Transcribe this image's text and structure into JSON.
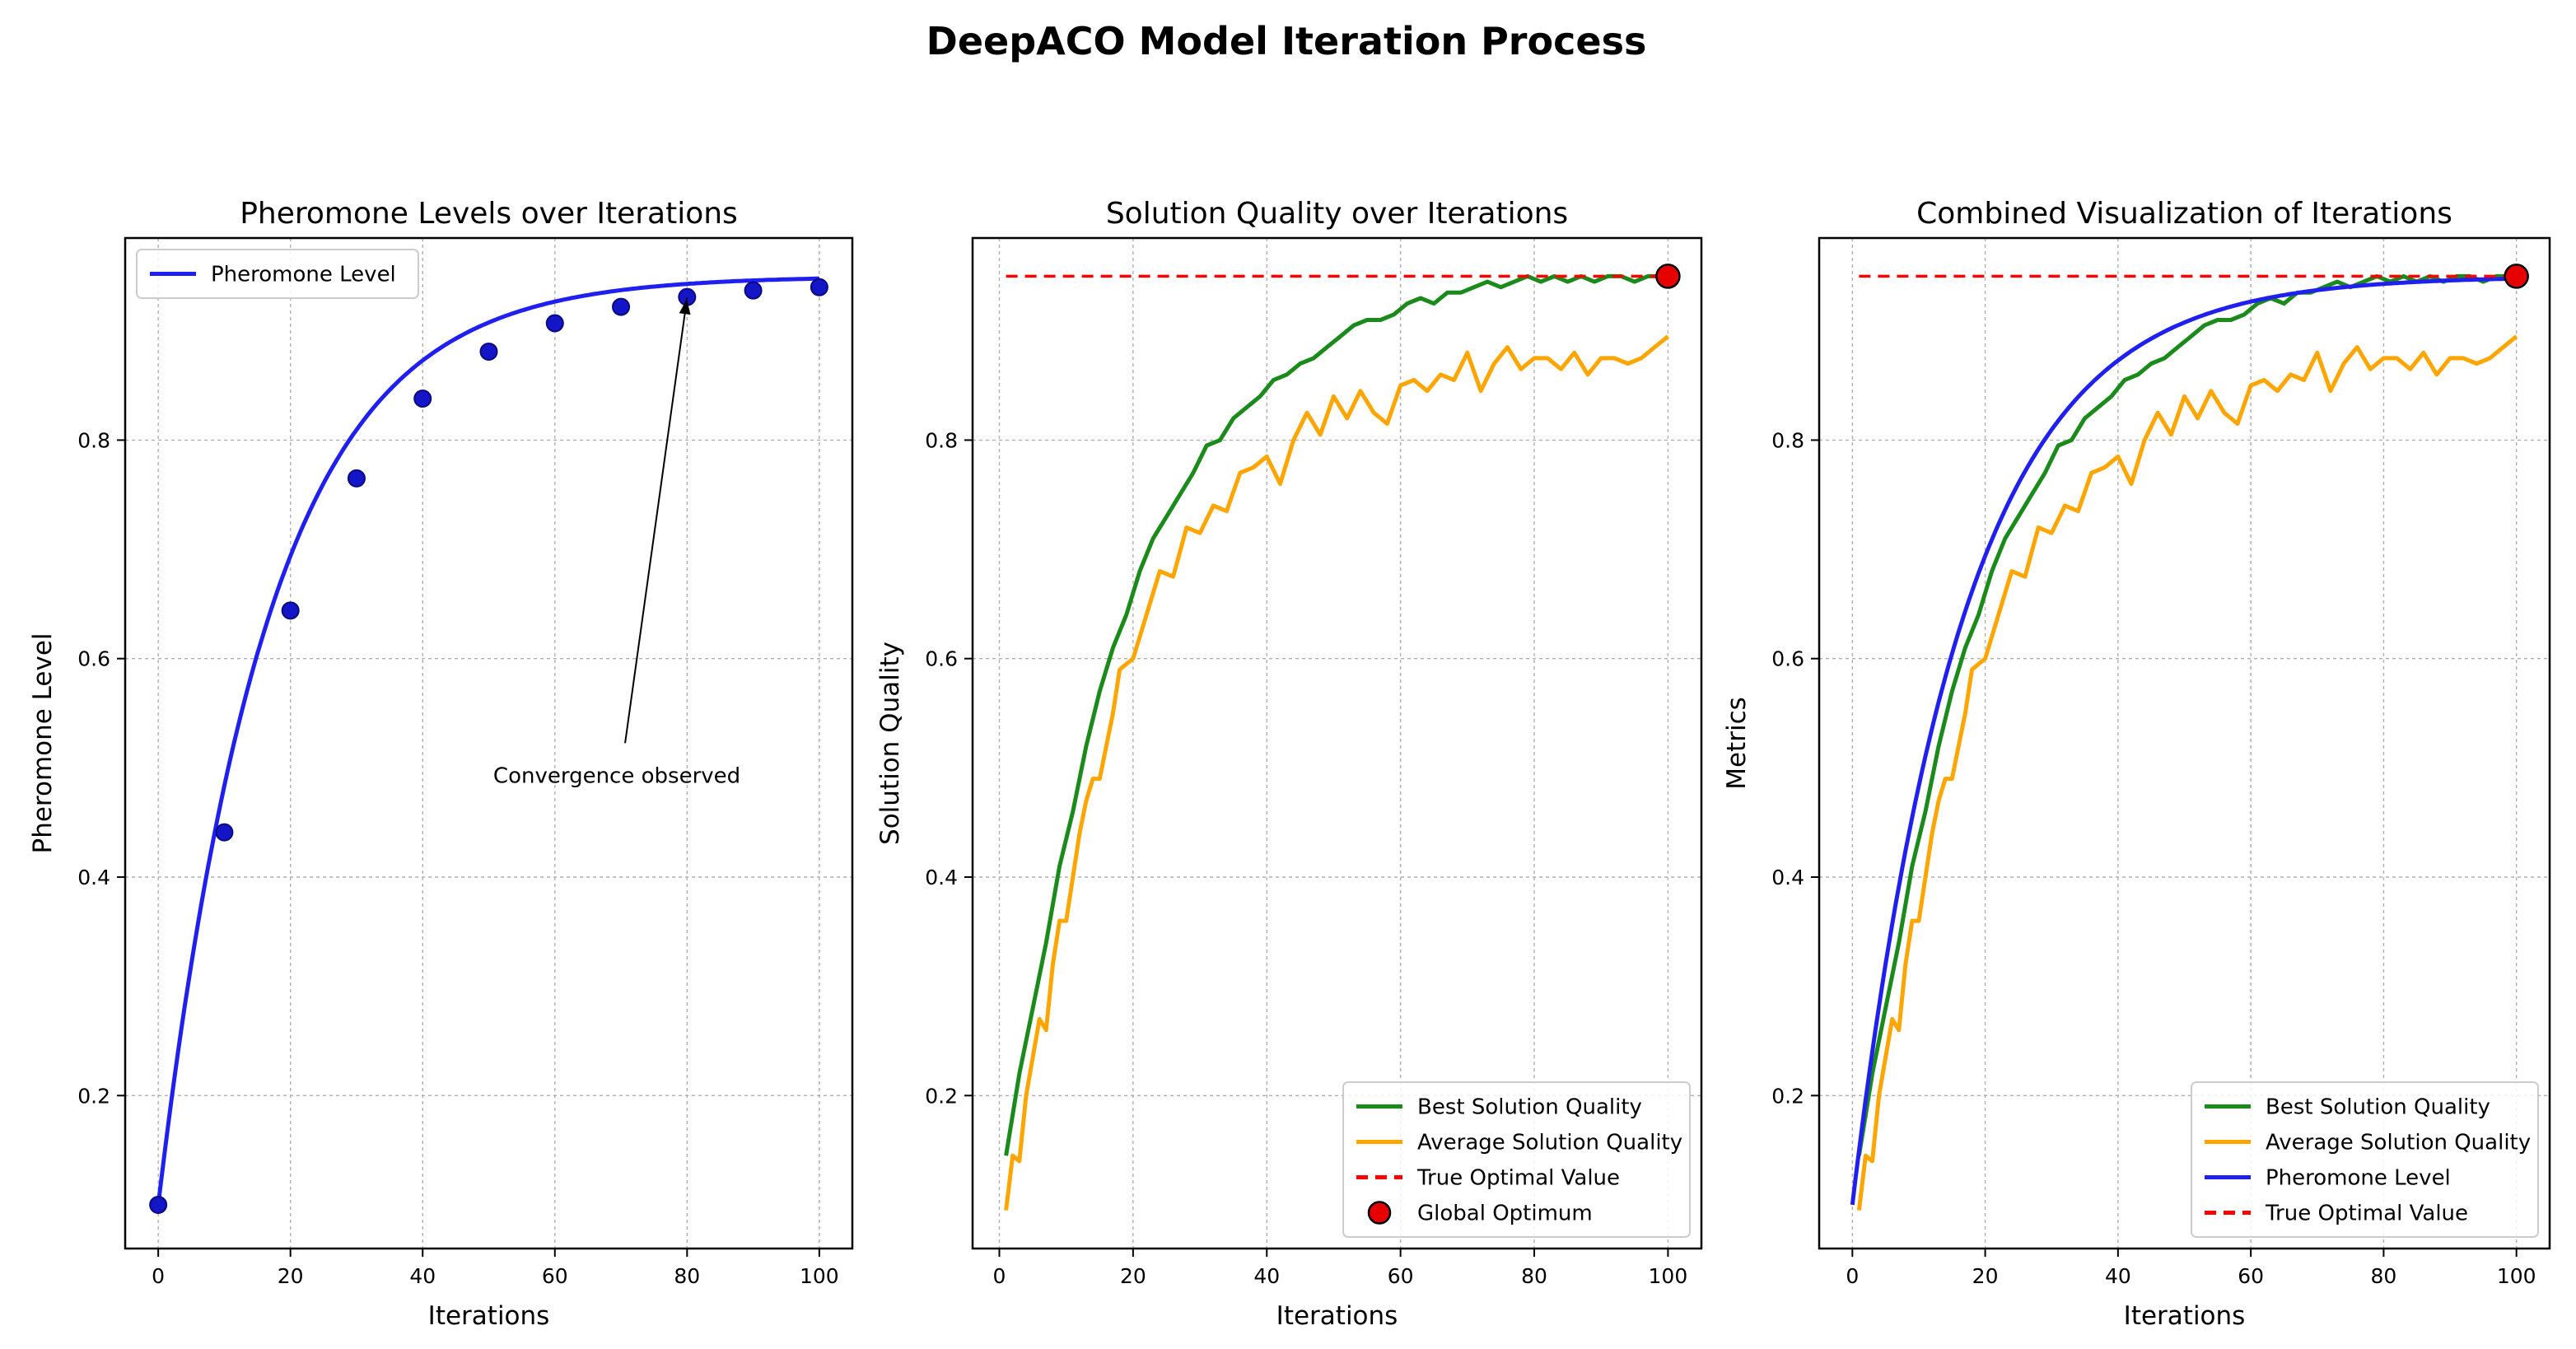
{
  "figure": {
    "suptitle": "DeepACO Model Iteration Process"
  },
  "colors": {
    "pheromone": "#1f1ff0",
    "pheromone_marker": "#1515c8",
    "best": "#1a8a1a",
    "average": "#ffa500",
    "optimal": "#ff0000",
    "global_optimum": "#e60000",
    "grid": "#b0b0b0"
  },
  "chart_data": [
    {
      "type": "line",
      "title": "Pheromone Levels over Iterations",
      "xlabel": "Iterations",
      "ylabel": "Pheromone Level",
      "xlim": [
        -5,
        105
      ],
      "ylim": [
        0.06,
        0.985
      ],
      "xticks": [
        0,
        20,
        40,
        60,
        80,
        100
      ],
      "xtick_labels": [
        "0",
        "20",
        "40",
        "60",
        "80",
        "100"
      ],
      "yticks": [
        0.2,
        0.4,
        0.6,
        0.8
      ],
      "ytick_labels": [
        "0.2",
        "0.4",
        "0.6",
        "0.8"
      ],
      "grid": true,
      "legend": {
        "position": "upper-left",
        "entries": [
          {
            "label": "Pheromone Level",
            "series": "pheromone"
          }
        ]
      },
      "series": [
        {
          "name": "Pheromone Level",
          "key": "pheromone",
          "curve": {
            "start": 0.1,
            "end": 0.95,
            "rate": 0.06,
            "from": 0,
            "to": 100
          },
          "marker_x": [
            0,
            10,
            20,
            30,
            40,
            50,
            60,
            70,
            80,
            90,
            100
          ],
          "marker_y": [
            0.1,
            0.441,
            0.644,
            0.765,
            0.838,
            0.881,
            0.907,
            0.922,
            0.931,
            0.937,
            0.94
          ]
        }
      ],
      "annotation": {
        "text": "Convergence observed",
        "point": [
          80,
          0.935
        ],
        "text_anchor": [
          70,
          0.5
        ]
      }
    },
    {
      "type": "line",
      "title": "Solution Quality over Iterations",
      "xlabel": "Iterations",
      "ylabel": "Solution Quality",
      "xlim": [
        -4,
        105
      ],
      "ylim": [
        0.06,
        0.985
      ],
      "xticks": [
        0,
        20,
        40,
        60,
        80,
        100
      ],
      "xtick_labels": [
        "0",
        "20",
        "40",
        "60",
        "80",
        "100"
      ],
      "yticks": [
        0.2,
        0.4,
        0.6,
        0.8
      ],
      "ytick_labels": [
        "0.2",
        "0.4",
        "0.6",
        "0.8"
      ],
      "grid": true,
      "legend": {
        "position": "lower-right",
        "entries": [
          {
            "label": "Best Solution Quality",
            "series": "best"
          },
          {
            "label": "Average Solution Quality",
            "series": "average"
          },
          {
            "label": "True Optimal Value",
            "series": "optimal"
          },
          {
            "label": "Global Optimum",
            "series": "global_optimum"
          }
        ]
      },
      "series": [
        {
          "name": "Best Solution Quality",
          "key": "best",
          "x": [
            1,
            3,
            5,
            7,
            9,
            11,
            13,
            15,
            17,
            19,
            21,
            23,
            25,
            27,
            29,
            31,
            33,
            35,
            37,
            39,
            41,
            43,
            45,
            47,
            49,
            51,
            53,
            55,
            57,
            59,
            61,
            63,
            65,
            67,
            69,
            71,
            73,
            75,
            77,
            79,
            81,
            83,
            85,
            87,
            89,
            91,
            93,
            95,
            97,
            99,
            100
          ],
          "y": [
            0.145,
            0.22,
            0.28,
            0.34,
            0.41,
            0.46,
            0.52,
            0.57,
            0.61,
            0.64,
            0.68,
            0.71,
            0.73,
            0.75,
            0.77,
            0.795,
            0.8,
            0.82,
            0.83,
            0.84,
            0.855,
            0.86,
            0.87,
            0.875,
            0.885,
            0.895,
            0.905,
            0.91,
            0.91,
            0.915,
            0.925,
            0.93,
            0.925,
            0.935,
            0.935,
            0.94,
            0.945,
            0.94,
            0.945,
            0.95,
            0.945,
            0.95,
            0.945,
            0.95,
            0.945,
            0.95,
            0.95,
            0.945,
            0.95,
            0.95,
            0.95
          ]
        },
        {
          "name": "Average Solution Quality",
          "key": "average",
          "x": [
            1,
            2,
            3,
            4,
            5,
            6,
            7,
            8,
            9,
            10,
            11,
            12,
            13,
            14,
            15,
            16,
            17,
            18,
            19,
            20,
            22,
            24,
            26,
            28,
            30,
            32,
            34,
            36,
            38,
            40,
            42,
            44,
            46,
            48,
            50,
            52,
            54,
            56,
            58,
            60,
            62,
            64,
            66,
            68,
            70,
            72,
            74,
            76,
            78,
            80,
            82,
            84,
            86,
            88,
            90,
            92,
            94,
            96,
            98,
            100
          ],
          "y": [
            0.095,
            0.145,
            0.14,
            0.2,
            0.235,
            0.27,
            0.26,
            0.32,
            0.36,
            0.36,
            0.4,
            0.44,
            0.47,
            0.49,
            0.49,
            0.52,
            0.55,
            0.59,
            0.595,
            0.6,
            0.64,
            0.68,
            0.675,
            0.72,
            0.715,
            0.74,
            0.735,
            0.77,
            0.775,
            0.785,
            0.76,
            0.8,
            0.825,
            0.805,
            0.84,
            0.82,
            0.845,
            0.825,
            0.815,
            0.85,
            0.855,
            0.845,
            0.86,
            0.855,
            0.88,
            0.845,
            0.87,
            0.885,
            0.865,
            0.875,
            0.875,
            0.865,
            0.88,
            0.86,
            0.875,
            0.875,
            0.87,
            0.875,
            0.885,
            0.895
          ]
        },
        {
          "name": "True Optimal Value",
          "key": "optimal",
          "y_const": 0.95,
          "x_range": [
            1,
            100
          ]
        },
        {
          "name": "Global Optimum",
          "key": "global_optimum",
          "point": [
            100,
            0.95
          ]
        }
      ]
    },
    {
      "type": "line",
      "title": "Combined Visualization of Iterations",
      "xlabel": "Iterations",
      "ylabel": "Metrics",
      "xlim": [
        -5,
        105
      ],
      "ylim": [
        0.06,
        0.985
      ],
      "xticks": [
        0,
        20,
        40,
        60,
        80,
        100
      ],
      "xtick_labels": [
        "0",
        "20",
        "40",
        "60",
        "80",
        "100"
      ],
      "yticks": [
        0.2,
        0.4,
        0.6,
        0.8
      ],
      "ytick_labels": [
        "0.2",
        "0.4",
        "0.6",
        "0.8"
      ],
      "grid": true,
      "legend": {
        "position": "lower-right",
        "entries": [
          {
            "label": "Best Solution Quality",
            "series": "best"
          },
          {
            "label": "Average Solution Quality",
            "series": "average"
          },
          {
            "label": "Pheromone Level",
            "series": "pheromone"
          },
          {
            "label": "True Optimal Value",
            "series": "optimal"
          }
        ]
      },
      "series": [
        {
          "name": "Best Solution Quality",
          "key": "best",
          "same_as": "chart_data.1.series.0"
        },
        {
          "name": "Average Solution Quality",
          "key": "average",
          "same_as": "chart_data.1.series.1"
        },
        {
          "name": "Pheromone Level",
          "key": "pheromone",
          "curve": {
            "start": 0.1,
            "end": 0.95,
            "rate": 0.06,
            "from": 0,
            "to": 100
          }
        },
        {
          "name": "True Optimal Value",
          "key": "optimal",
          "y_const": 0.95,
          "x_range": [
            1,
            100
          ]
        },
        {
          "name": "Global Optimum",
          "key": "global_optimum",
          "point": [
            100,
            0.95
          ]
        }
      ]
    }
  ]
}
